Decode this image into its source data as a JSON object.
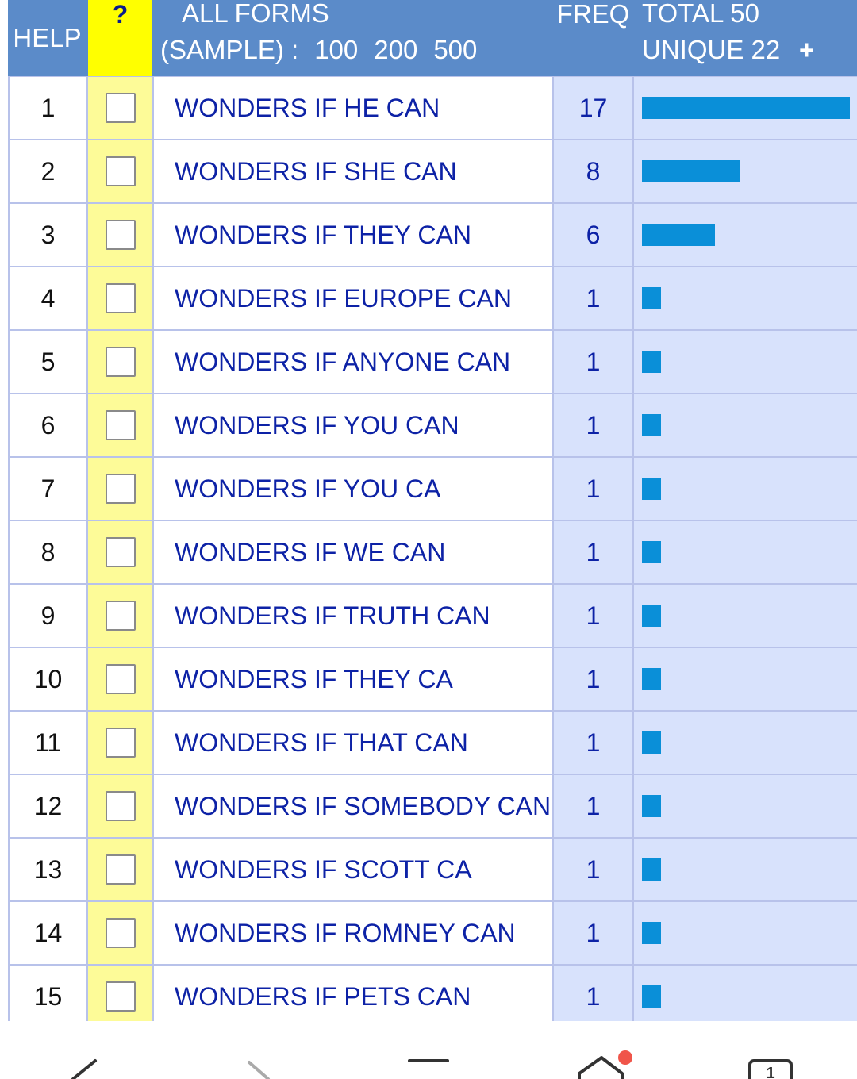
{
  "header": {
    "help_label": "HELP",
    "question_label": "?",
    "forms_title": "ALL FORMS",
    "sample_label": "(SAMPLE) :",
    "sample_options": [
      "100",
      "200",
      "500"
    ],
    "freq_label": "FREQ",
    "total_label": "TOTAL 50",
    "unique_label": "UNIQUE 22",
    "expand_label": "+"
  },
  "rows": [
    {
      "num": "1",
      "form": "WONDERS IF HE CAN",
      "freq": "17"
    },
    {
      "num": "2",
      "form": "WONDERS IF SHE CAN",
      "freq": "8"
    },
    {
      "num": "3",
      "form": "WONDERS IF THEY CAN",
      "freq": "6"
    },
    {
      "num": "4",
      "form": "WONDERS IF EUROPE CAN",
      "freq": "1"
    },
    {
      "num": "5",
      "form": "WONDERS IF ANYONE CAN",
      "freq": "1"
    },
    {
      "num": "6",
      "form": "WONDERS IF YOU CAN",
      "freq": "1"
    },
    {
      "num": "7",
      "form": "WONDERS IF YOU CA",
      "freq": "1"
    },
    {
      "num": "8",
      "form": "WONDERS IF WE CAN",
      "freq": "1"
    },
    {
      "num": "9",
      "form": "WONDERS IF TRUTH CAN",
      "freq": "1"
    },
    {
      "num": "10",
      "form": "WONDERS IF THEY CA",
      "freq": "1"
    },
    {
      "num": "11",
      "form": "WONDERS IF THAT CAN",
      "freq": "1"
    },
    {
      "num": "12",
      "form": "WONDERS IF SOMEBODY CAN",
      "freq": "1"
    },
    {
      "num": "13",
      "form": "WONDERS IF SCOTT CA",
      "freq": "1"
    },
    {
      "num": "14",
      "form": "WONDERS IF ROMNEY CAN",
      "freq": "1"
    },
    {
      "num": "15",
      "form": "WONDERS IF PETS CAN",
      "freq": "1"
    }
  ],
  "colors": {
    "header_bg": "#5b8bc9",
    "help_col_bg": "#ffff00",
    "checkbox_col_bg": "#fdfb98",
    "freq_col_bg": "#d8e2fc",
    "form_text": "#0d22a6",
    "bar": "#0a8fd8",
    "notification_dot": "#f0554a"
  },
  "bottom_nav": {
    "icons": [
      "back-icon",
      "forward-icon",
      "menu-icon",
      "home-icon",
      "tabs-icon"
    ],
    "tab_count": "1"
  }
}
